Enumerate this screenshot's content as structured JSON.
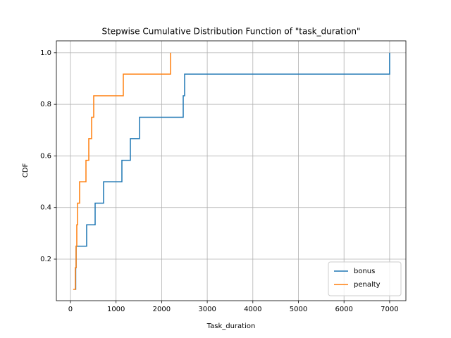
{
  "chart_data": {
    "type": "step",
    "title": "Stepwise Cumulative Distribution Function of \"task_duration\"",
    "xlabel": "Task_duration",
    "ylabel": "CDF",
    "series": [
      {
        "name": "bonus",
        "color": "#1f77b4",
        "x": [
          110,
          115,
          124,
          355,
          541,
          726,
          1128,
          1314,
          1515,
          2473,
          2504,
          7000
        ],
        "values": [
          0.083,
          0.167,
          0.25,
          0.333,
          0.417,
          0.5,
          0.583,
          0.667,
          0.75,
          0.833,
          0.917,
          1.0
        ]
      },
      {
        "name": "penalty",
        "color": "#ff7f0e",
        "x": [
          60,
          108,
          124,
          139,
          155,
          200,
          340,
          402,
          464,
          510,
          1159,
          2195
        ],
        "values": [
          0.083,
          0.167,
          0.25,
          0.333,
          0.417,
          0.5,
          0.583,
          0.667,
          0.75,
          0.833,
          0.917,
          1.0
        ]
      }
    ],
    "xlim": [
      -309,
      7357
    ],
    "ylim": [
      0.039,
      1.046
    ],
    "xticks": [
      0,
      1000,
      2000,
      3000,
      4000,
      5000,
      6000,
      7000
    ],
    "yticks": [
      0.2,
      0.4,
      0.6,
      0.8,
      {
        "value": 1,
        "label": "1.0"
      }
    ],
    "grid": true,
    "legend": "lower right"
  }
}
